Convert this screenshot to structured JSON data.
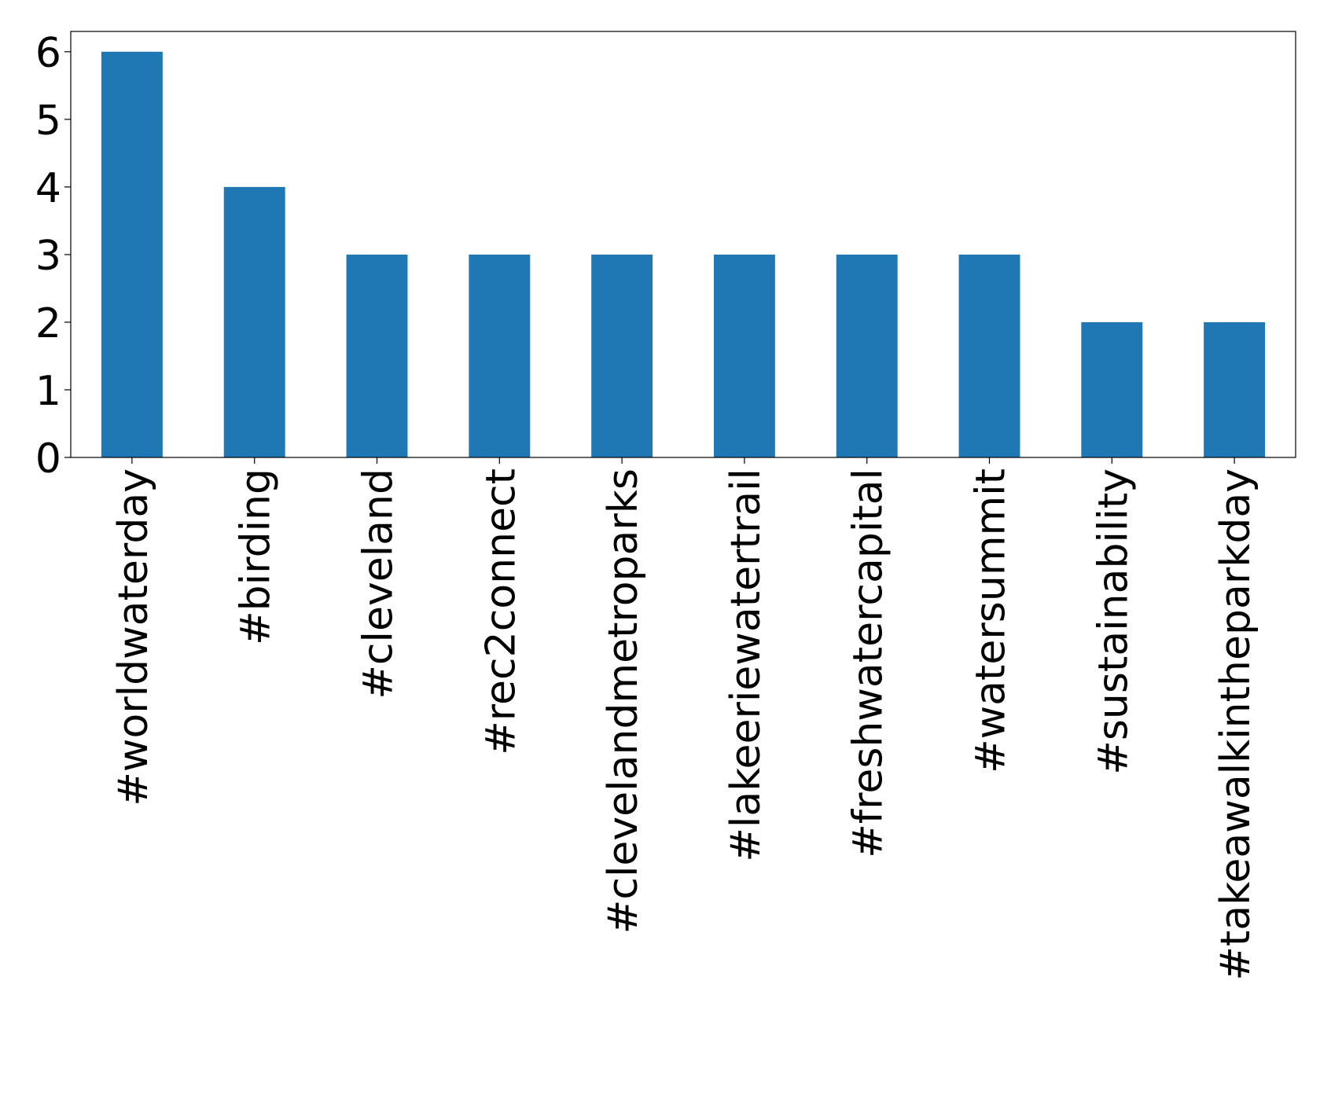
{
  "chart_data": {
    "type": "bar",
    "categories": [
      "#worldwaterday",
      "#birding",
      "#cleveland",
      "#rec2connect",
      "#clevelandmetroparks",
      "#lakeeriewatertrail",
      "#freshwatercapital",
      "#watersummit",
      "#sustainability",
      "#takeawalkintheparkday"
    ],
    "values": [
      6,
      4,
      3,
      3,
      3,
      3,
      3,
      3,
      2,
      2
    ],
    "color": "#1f77b4",
    "ylim": [
      0,
      6.3
    ],
    "yticks": [
      0,
      1,
      2,
      3,
      4,
      5,
      6
    ],
    "grid": false
  }
}
